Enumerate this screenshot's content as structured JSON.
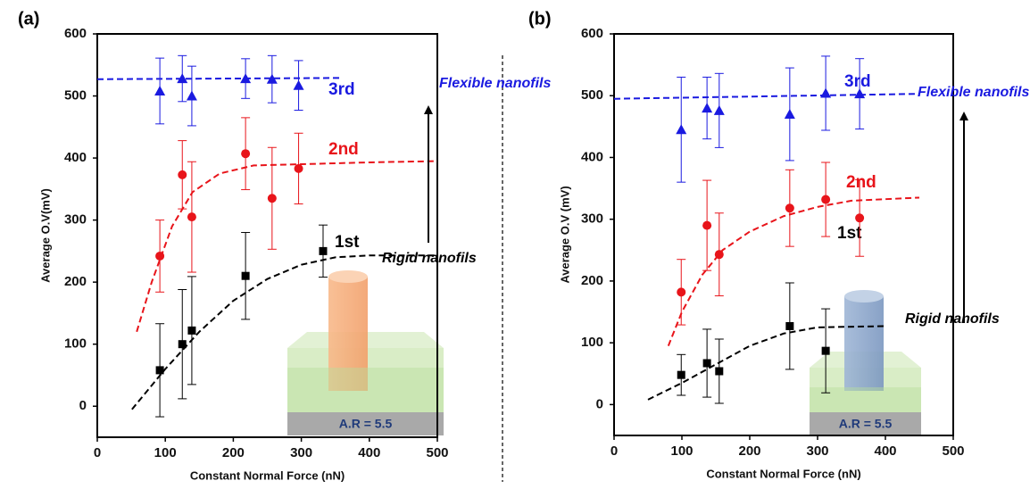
{
  "chart_data": [
    {
      "type": "scatter",
      "panel_label": "(a)",
      "xlabel": "Constant Normal Force (nN)",
      "ylabel": "Average O.V(mV)",
      "xlim": [
        0,
        500
      ],
      "ylim": [
        -50,
        600
      ],
      "xticks": [
        0,
        100,
        200,
        300,
        400,
        500
      ],
      "yticks": [
        0,
        100,
        200,
        300,
        400,
        500,
        600
      ],
      "series": [
        {
          "name": "1st",
          "color": "#000000",
          "marker": "square",
          "x": [
            92,
            125,
            139,
            218,
            332
          ],
          "values": [
            58,
            100,
            122,
            210,
            250
          ],
          "errors": [
            75,
            88,
            87,
            70,
            42
          ]
        },
        {
          "name": "2nd",
          "color": "#e8141a",
          "marker": "circle",
          "x": [
            92,
            125,
            139,
            218,
            257,
            296
          ],
          "values": [
            242,
            373,
            305,
            407,
            335,
            383
          ],
          "errors": [
            58,
            55,
            89,
            58,
            82,
            57
          ]
        },
        {
          "name": "3rd",
          "color": "#1a1ae0",
          "marker": "triangle",
          "x": [
            92,
            125,
            139,
            218,
            257,
            296
          ],
          "values": [
            508,
            528,
            500,
            528,
            527,
            517
          ],
          "errors": [
            53,
            37,
            48,
            32,
            38,
            40
          ]
        }
      ],
      "fits": [
        {
          "color": "#000000",
          "x": [
            51,
            100,
            150,
            200,
            250,
            300,
            350,
            400,
            500
          ],
          "values": [
            -5,
            60,
            120,
            170,
            205,
            228,
            240,
            243,
            243
          ]
        },
        {
          "color": "#e8141a",
          "x": [
            58,
            80,
            110,
            140,
            180,
            230,
            300,
            400,
            500
          ],
          "values": [
            120,
            200,
            290,
            345,
            375,
            388,
            390,
            393,
            395
          ]
        },
        {
          "color": "#1a1ae0",
          "x": [
            0,
            356
          ],
          "values": [
            527,
            529
          ]
        }
      ],
      "top_note": "Flexible nanofils",
      "bottom_note": "Rigid nanofils",
      "inset_label": "A.R = 5.5"
    },
    {
      "type": "scatter",
      "panel_label": "(b)",
      "xlabel": "Constant Normal Force (nN)",
      "ylabel": "Average O.V (mV)",
      "xlim": [
        0,
        500
      ],
      "ylim": [
        -50,
        600
      ],
      "xticks": [
        0,
        100,
        200,
        300,
        400,
        500
      ],
      "yticks": [
        0,
        100,
        200,
        300,
        400,
        500,
        600
      ],
      "series": [
        {
          "name": "1st",
          "color": "#000000",
          "marker": "square",
          "x": [
            99,
            137,
            155,
            259,
            312
          ],
          "values": [
            48,
            67,
            54,
            127,
            87
          ],
          "errors": [
            33,
            55,
            52,
            70,
            68
          ]
        },
        {
          "name": "2nd",
          "color": "#e8141a",
          "marker": "circle",
          "x": [
            99,
            137,
            155,
            259,
            312,
            362
          ],
          "values": [
            182,
            290,
            243,
            318,
            332,
            302
          ],
          "errors": [
            53,
            73,
            67,
            62,
            60,
            62
          ]
        },
        {
          "name": "3rd",
          "color": "#1a1ae0",
          "marker": "triangle",
          "x": [
            99,
            137,
            155,
            259,
            312,
            362
          ],
          "values": [
            445,
            480,
            476,
            470,
            504,
            503
          ],
          "errors": [
            85,
            50,
            60,
            75,
            60,
            57
          ]
        }
      ],
      "fits": [
        {
          "color": "#000000",
          "x": [
            50,
            100,
            150,
            200,
            250,
            300,
            400
          ],
          "values": [
            8,
            35,
            65,
            95,
            115,
            125,
            127
          ]
        },
        {
          "color": "#e8141a",
          "x": [
            80,
            100,
            130,
            160,
            200,
            250,
            300,
            350,
            450
          ],
          "values": [
            95,
            150,
            210,
            250,
            280,
            305,
            320,
            330,
            335
          ]
        },
        {
          "color": "#1a1ae0",
          "x": [
            0,
            450
          ],
          "values": [
            495,
            503
          ]
        }
      ],
      "top_note": "Flexible nanofils",
      "bottom_note": "Rigid nanofils",
      "inset_label": "A.R = 5.5"
    }
  ]
}
